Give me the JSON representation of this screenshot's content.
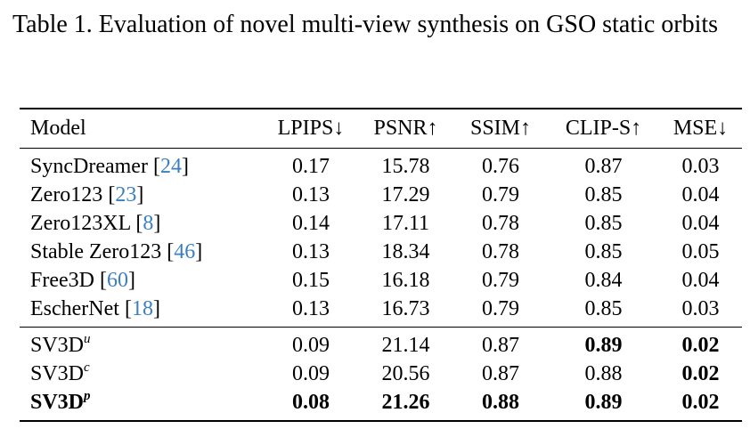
{
  "caption": "Table 1. Evaluation of novel multi-view synthesis on GSO static orbits",
  "headers": [
    "Model",
    "LPIPS↓",
    "PSNR↑",
    "SSIM↑",
    "CLIP-S↑",
    "MSE↓"
  ],
  "group1": [
    {
      "name": "SyncDreamer ",
      "cite": "24",
      "values": [
        "0.17",
        "15.78",
        "0.76",
        "0.87",
        "0.03"
      ]
    },
    {
      "name": "Zero123 ",
      "cite": "23",
      "values": [
        "0.13",
        "17.29",
        "0.79",
        "0.85",
        "0.04"
      ]
    },
    {
      "name": "Zero123XL ",
      "cite": "8",
      "values": [
        "0.14",
        "17.11",
        "0.78",
        "0.85",
        "0.04"
      ]
    },
    {
      "name": "Stable Zero123 ",
      "cite": "46",
      "values": [
        "0.13",
        "18.34",
        "0.78",
        "0.85",
        "0.05"
      ]
    },
    {
      "name": "Free3D ",
      "cite": "60",
      "values": [
        "0.15",
        "16.18",
        "0.79",
        "0.84",
        "0.04"
      ]
    },
    {
      "name": "EscherNet ",
      "cite": "18",
      "values": [
        "0.13",
        "16.73",
        "0.79",
        "0.85",
        "0.03"
      ]
    }
  ],
  "group2": [
    {
      "name": "SV3D",
      "sup": "u",
      "values": [
        "0.09",
        "21.14",
        "0.87",
        "0.89",
        "0.02"
      ],
      "bold": [
        false,
        false,
        false,
        true,
        true
      ],
      "name_bold": false
    },
    {
      "name": "SV3D",
      "sup": "c",
      "values": [
        "0.09",
        "20.56",
        "0.87",
        "0.88",
        "0.02"
      ],
      "bold": [
        false,
        false,
        false,
        false,
        true
      ],
      "name_bold": false
    },
    {
      "name": "SV3D",
      "sup": "p",
      "values": [
        "0.08",
        "21.26",
        "0.88",
        "0.89",
        "0.02"
      ],
      "bold": [
        true,
        true,
        true,
        true,
        true
      ],
      "name_bold": true
    }
  ],
  "colors": {
    "citation": "#3a7fc1"
  }
}
